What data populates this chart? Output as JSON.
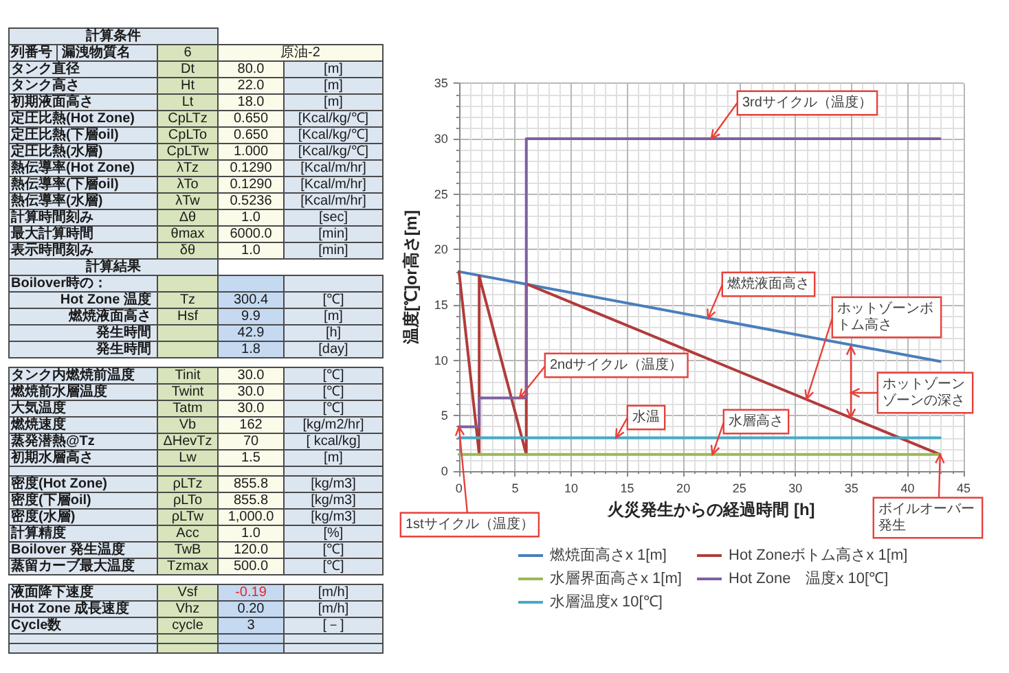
{
  "chart_data": [
    {
      "type": "other",
      "annotations": [
        "計算条件",
        "列番号",
        "漏洩物質名",
        "6",
        "原油-2",
        "タンク直径",
        "Dt",
        "80.0",
        "[m]",
        "タンク高さ",
        "Ht",
        "22.0",
        "[m]",
        "初期液面高さ",
        "Lt",
        "18.0",
        "[m]",
        "定圧比熱(Hot Zone)",
        "CpLTz",
        "0.650",
        "[Kcal/kg/℃]",
        "定圧比熱(下層oil)",
        "CpLTo",
        "0.650",
        "[Kcal/kg/℃]",
        "定圧比熱(水層)",
        "CpLTw",
        "1.000",
        "[Kcal/kg/℃]",
        "熱伝導率(Hot Zone)",
        "λTz",
        "0.1290",
        "[Kcal/m/hr]",
        "熱伝導率(下層oil)",
        "λTo",
        "0.1290",
        "[Kcal/m/hr]",
        "熱伝導率(水層)",
        "λTw",
        "0.5236",
        "[Kcal/m/hr]",
        "計算時間刻み",
        "Δθ",
        "1.0",
        "[sec]",
        "最大計算時間",
        "θmax",
        "6000.0",
        "[min]",
        "表示時間刻み",
        "δθ",
        "1.0",
        "[min]",
        "計算結果",
        "Boilover時の：",
        "Hot Zone 温度",
        "Tz",
        "300.4",
        "[℃]",
        "燃焼液面高さ",
        "Hsf",
        "9.9",
        "[m]",
        "発生時間",
        "42.9",
        "[h]",
        "発生時間",
        "1.8",
        "[day]",
        "タンク内燃焼前温度",
        "Tinit",
        "30.0",
        "[℃]",
        "燃焼前水層温度",
        "Twint",
        "30.0",
        "[℃]",
        "大気温度",
        "Tatm",
        "30.0",
        "[℃]",
        "燃焼速度",
        "Vb",
        "162",
        "[kg/m2/hr]",
        "蒸発潜熱@Tz",
        "ΔHevTz",
        "70",
        "[ kcal/kg]",
        "初期水層高さ",
        "Lw",
        "1.5",
        "[m]",
        "密度(Hot Zone)",
        "ρLTz",
        "855.8",
        "[kg/m3]",
        "密度(下層oil)",
        "ρLTo",
        "855.8",
        "[kg/m3]",
        "密度(水層)",
        "ρLTw",
        "1,000.0",
        "[kg/m3]",
        "計算精度",
        "Acc",
        "1.0",
        "[%]",
        "Boilover 発生温度",
        "TwB",
        "120.0",
        "[℃]",
        "蒸留カーブ最大温度",
        "Tzmax",
        "500.0",
        "[℃]",
        "液面降下速度",
        "Vsf",
        "-0.19",
        "[m/h]",
        "Hot Zone 成長速度",
        "Vhz",
        "0.20",
        "[m/h]",
        "Cycle数",
        "cycle",
        "3",
        "[－]"
      ]
    },
    {
      "type": "line",
      "xlabel": "火災発生からの経過時間 [h]",
      "ylabel": "温度[℃]or高さ[m]",
      "xlim": [
        0,
        45
      ],
      "xticks": [
        0,
        5,
        10,
        15,
        20,
        25,
        30,
        35,
        40,
        45
      ],
      "ylim": [
        0,
        35
      ],
      "yticks": [
        0,
        5,
        10,
        15,
        20,
        25,
        30,
        35
      ],
      "grid": true,
      "legend": "bottom",
      "marker": "none",
      "series": [
        {
          "name": "燃焼面高さx 1[m]",
          "color": "#4a7ebb",
          "x": [
            0,
            42.9
          ],
          "values": [
            18,
            9.9
          ]
        },
        {
          "name": "Hot Zoneボトム高さx 1[m]",
          "color": "#b03c3a",
          "x": [
            0,
            1.8,
            1.8,
            6,
            6,
            42.9
          ],
          "values": [
            18,
            1.5,
            17.6,
            1.5,
            16.9,
            1.5
          ]
        },
        {
          "name": "水層界面高さx 1[m]",
          "color": "#98b954",
          "x": [
            0,
            42.9
          ],
          "values": [
            1.5,
            1.5
          ]
        },
        {
          "name": "Hot Zone　温度x 10[℃]",
          "color": "#7d60a0",
          "x": [
            0,
            1.8,
            1.8,
            6,
            6,
            42.9
          ],
          "values": [
            4.0,
            4.0,
            6.6,
            6.6,
            30.0,
            30.0
          ]
        },
        {
          "name": "水層温度x 10[℃]",
          "color": "#46aac5",
          "x": [
            0,
            42.9
          ],
          "values": [
            3.0,
            3.0
          ]
        }
      ],
      "annotations": [
        {
          "text": "1stサイクル（温度）",
          "x": 0,
          "y": 4.0
        },
        {
          "text": "2ndサイクル（温度）",
          "x": 5.4,
          "y": 6.6
        },
        {
          "text": "3rdサイクル（温度）",
          "x": 22.5,
          "y": 30.0
        },
        {
          "text": "燃焼液面高さ",
          "x": 22.2,
          "y": 13.8
        },
        {
          "text": "ホットゾーンボトム高さ",
          "x": 31.0,
          "y": 6.5
        },
        "ホットゾーンゾーンの深さ",
        {
          "text": "水温",
          "x": 14,
          "y": 3.0
        },
        {
          "text": "水層高さ",
          "x": 22.6,
          "y": 1.5
        },
        {
          "text": "ボイルオーバー発生",
          "x": 42.9,
          "y": 1.5
        }
      ]
    }
  ]
}
